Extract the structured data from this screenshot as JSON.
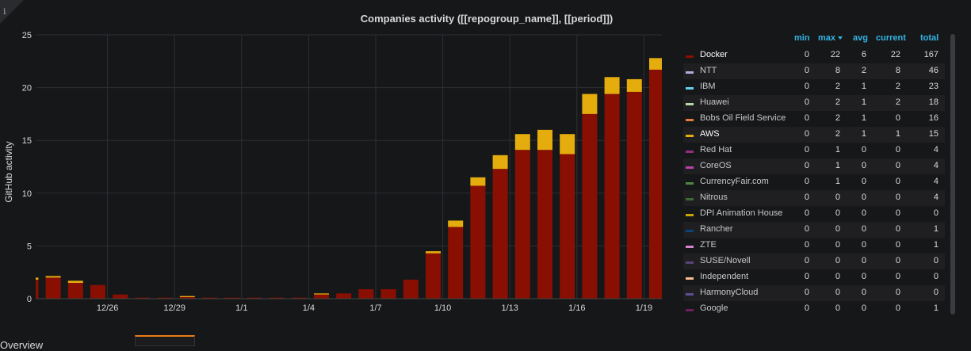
{
  "panel": {
    "title": "Companies activity ([[repogroup_name]], [[period]])",
    "info_icon": "info-icon",
    "bottom_text": "Overview"
  },
  "colors": {
    "docker": "#890f02",
    "aws": "#e5ac0e",
    "grid": "#2f2f32",
    "axis_text": "#d8d9da"
  },
  "chart_data": {
    "type": "bar",
    "stacked": true,
    "title": "Companies activity ([[repogroup_name]], [[period]])",
    "ylabel": "GitHub activity",
    "ylim": [
      0,
      25
    ],
    "y_ticks": [
      "0",
      "5",
      "10",
      "15",
      "20",
      "25"
    ],
    "x_ticks": [
      "12/26",
      "12/29",
      "1/1",
      "1/4",
      "1/7",
      "1/10",
      "1/13",
      "1/16",
      "1/19"
    ],
    "categories": [
      "12/23",
      "12/24",
      "12/25",
      "12/26",
      "12/27",
      "12/28",
      "12/29",
      "12/30",
      "12/31",
      "1/1",
      "1/2",
      "1/3",
      "1/4",
      "1/5",
      "1/6",
      "1/7",
      "1/8",
      "1/9",
      "1/10",
      "1/11",
      "1/12",
      "1/13",
      "1/14",
      "1/15",
      "1/16",
      "1/17",
      "1/18",
      "1/19",
      "1/20"
    ],
    "series": [
      {
        "name": "Docker",
        "color": "#890f02",
        "values": [
          1.8,
          2.0,
          1.5,
          1.3,
          0.4,
          0.1,
          0.1,
          0.15,
          0.1,
          0.1,
          0.1,
          0.1,
          0.1,
          0.4,
          0.5,
          0.9,
          0.9,
          1.8,
          4.3,
          6.8,
          10.7,
          12.3,
          14.1,
          14.1,
          13.7,
          17.5,
          19.4,
          19.6,
          21.7
        ]
      },
      {
        "name": "AWS",
        "color": "#e5ac0e",
        "values": [
          0.2,
          0.15,
          0.2,
          0,
          0,
          0,
          0,
          0.1,
          0,
          0,
          0,
          0,
          0,
          0.1,
          0,
          0,
          0,
          0,
          0.2,
          0.6,
          0.8,
          1.3,
          1.5,
          1.9,
          1.9,
          1.9,
          1.6,
          1.2,
          1.1
        ]
      }
    ],
    "legend_position": "right",
    "grid": true
  },
  "legend": {
    "headers": {
      "min": "min",
      "max": "max",
      "avg": "avg",
      "current": "current",
      "total": "total"
    },
    "rows": [
      {
        "name": "Docker",
        "color": "#890f02",
        "min": "0",
        "max": "22",
        "avg": "6",
        "current": "22",
        "total": "167",
        "highlight": true
      },
      {
        "name": "NTT",
        "color": "#b7a8de",
        "min": "0",
        "max": "8",
        "avg": "2",
        "current": "8",
        "total": "46"
      },
      {
        "name": "IBM",
        "color": "#64d1ee",
        "min": "0",
        "max": "2",
        "avg": "1",
        "current": "2",
        "total": "23"
      },
      {
        "name": "Huawei",
        "color": "#b7dba4",
        "min": "0",
        "max": "2",
        "avg": "1",
        "current": "2",
        "total": "18"
      },
      {
        "name": "Bobs Oil Field Service",
        "color": "#e57b3a",
        "min": "0",
        "max": "2",
        "avg": "1",
        "current": "0",
        "total": "16"
      },
      {
        "name": "AWS",
        "color": "#e5ac0e",
        "min": "0",
        "max": "2",
        "avg": "1",
        "current": "1",
        "total": "15",
        "highlight": true
      },
      {
        "name": "Red Hat",
        "color": "#962d82",
        "min": "0",
        "max": "1",
        "avg": "0",
        "current": "0",
        "total": "4"
      },
      {
        "name": "CoreOS",
        "color": "#ba43a9",
        "min": "0",
        "max": "1",
        "avg": "0",
        "current": "0",
        "total": "4"
      },
      {
        "name": "CurrencyFair.com",
        "color": "#508642",
        "min": "0",
        "max": "1",
        "avg": "0",
        "current": "0",
        "total": "4"
      },
      {
        "name": "Nitrous",
        "color": "#3f6833",
        "min": "0",
        "max": "0",
        "avg": "0",
        "current": "0",
        "total": "4"
      },
      {
        "name": "DPI Animation House",
        "color": "#cca300",
        "min": "0",
        "max": "0",
        "avg": "0",
        "current": "0",
        "total": "0"
      },
      {
        "name": "Rancher",
        "color": "#0a437c",
        "min": "0",
        "max": "0",
        "avg": "0",
        "current": "0",
        "total": "1"
      },
      {
        "name": "ZTE",
        "color": "#d683ce",
        "min": "0",
        "max": "0",
        "avg": "0",
        "current": "0",
        "total": "1"
      },
      {
        "name": "SUSE/Novell",
        "color": "#584477",
        "min": "0",
        "max": "0",
        "avg": "0",
        "current": "0",
        "total": "0"
      },
      {
        "name": "Independent",
        "color": "#f9ba8f",
        "min": "0",
        "max": "0",
        "avg": "0",
        "current": "0",
        "total": "0"
      },
      {
        "name": "HarmonyCloud",
        "color": "#614d93",
        "min": "0",
        "max": "0",
        "avg": "0",
        "current": "0",
        "total": "0"
      },
      {
        "name": "Google",
        "color": "#6d1f62",
        "min": "0",
        "max": "0",
        "avg": "0",
        "current": "0",
        "total": "1"
      }
    ]
  }
}
